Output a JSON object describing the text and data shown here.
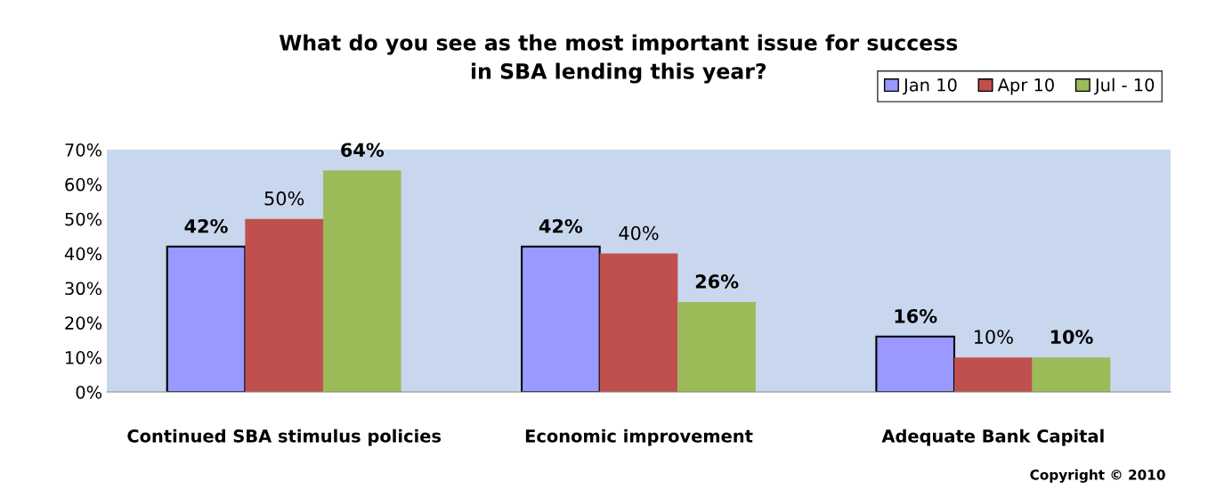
{
  "chart_data": {
    "type": "bar",
    "title": "What do you see as the most important issue for success\nin SBA lending this year?",
    "categories": [
      "Continued SBA stimulus policies",
      "Economic improvement",
      "Adequate Bank Capital"
    ],
    "series": [
      {
        "name": "Jan 10",
        "color": "#9999ff",
        "values": [
          42,
          42,
          16
        ],
        "value_labels": [
          "42%",
          "42%",
          "16%"
        ]
      },
      {
        "name": "Apr 10",
        "color": "#c0504d",
        "values": [
          50,
          40,
          10
        ],
        "value_labels": [
          "50%",
          "40%",
          "10%"
        ]
      },
      {
        "name": "Jul - 10",
        "color": "#9bbb59",
        "values": [
          64,
          26,
          10
        ],
        "value_labels": [
          "64%",
          "26%",
          "10%"
        ]
      }
    ],
    "ylim": [
      0,
      70
    ],
    "yticks": [
      {
        "value": 0,
        "label": "0%"
      },
      {
        "value": 10,
        "label": "10%"
      },
      {
        "value": 20,
        "label": "20%"
      },
      {
        "value": 30,
        "label": "30%"
      },
      {
        "value": 40,
        "label": "40%"
      },
      {
        "value": 50,
        "label": "50%"
      },
      {
        "value": 60,
        "label": "60%"
      },
      {
        "value": 70,
        "label": "70%"
      }
    ],
    "grid": false,
    "legend": "top right",
    "annotations": [
      "Copyright © 2010"
    ]
  }
}
